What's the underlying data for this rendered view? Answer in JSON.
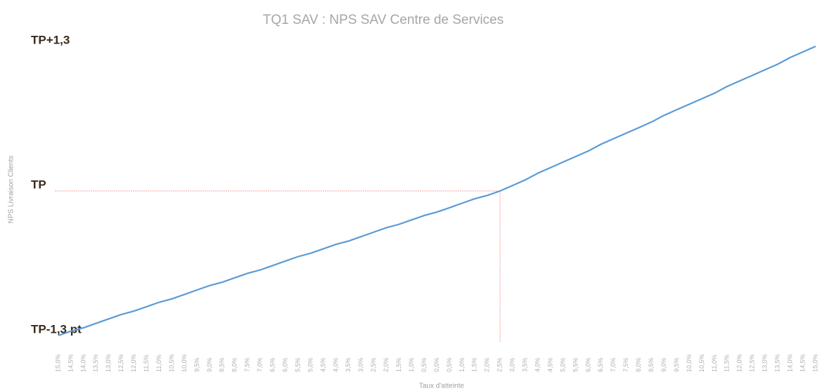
{
  "chart_data": {
    "type": "line",
    "title": "TQ1 SAV : NPS SAV Centre de Services",
    "x_label": "Taux d'atteinte",
    "y_label": "NPS Livraison Clients",
    "categories": [
      "15,0%",
      "14,5%",
      "14,0%",
      "13,5%",
      "13,0%",
      "12,5%",
      "12,0%",
      "11,5%",
      "11,0%",
      "10,5%",
      "10,0%",
      "9,5%",
      "9,0%",
      "8,5%",
      "8,0%",
      "7,5%",
      "7,0%",
      "6,5%",
      "6,0%",
      "5,5%",
      "5,0%",
      "4,5%",
      "4,0%",
      "3,5%",
      "3,0%",
      "2,5%",
      "2,0%",
      "1,5%",
      "1,0%",
      "0,5%",
      "0,0%",
      "0,5%",
      "1,0%",
      "1,5%",
      "2,0%",
      "2,5%",
      "3,0%",
      "3,5%",
      "4,0%",
      "4,5%",
      "5,0%",
      "5,5%",
      "6,0%",
      "6,5%",
      "7,0%",
      "7,5%",
      "8,0%",
      "8,5%",
      "9,0%",
      "9,5%",
      "10,0%",
      "10,5%",
      "11,0%",
      "11,5%",
      "12,0%",
      "12,5%",
      "13,0%",
      "13,5%",
      "14,0%",
      "14,5%",
      "15,0%"
    ],
    "series": [
      {
        "name": "NPS",
        "color": "#5b9bd5",
        "values": [
          -1.3,
          -1.26,
          -1.23,
          -1.19,
          -1.15,
          -1.11,
          -1.08,
          -1.04,
          -1.0,
          -0.97,
          -0.93,
          -0.89,
          -0.85,
          -0.82,
          -0.78,
          -0.74,
          -0.71,
          -0.67,
          -0.63,
          -0.59,
          -0.56,
          -0.52,
          -0.48,
          -0.45,
          -0.41,
          -0.37,
          -0.33,
          -0.3,
          -0.26,
          -0.22,
          -0.19,
          -0.15,
          -0.11,
          -0.07,
          -0.04,
          0,
          0.05,
          0.1,
          0.16,
          0.21,
          0.26,
          0.31,
          0.36,
          0.42,
          0.47,
          0.52,
          0.57,
          0.62,
          0.68,
          0.73,
          0.78,
          0.83,
          0.88,
          0.94,
          0.99,
          1.04,
          1.09,
          1.14,
          1.2,
          1.25,
          1.3
        ]
      }
    ],
    "ylim": [
      -1.3,
      1.3
    ],
    "yticks": [
      {
        "value": 1.3,
        "label": "TP+1,3"
      },
      {
        "value": 0,
        "label": "TP"
      },
      {
        "value": -1.3,
        "label": "TP-1,3 pt"
      }
    ],
    "guide_color": "#f4b6b6"
  }
}
